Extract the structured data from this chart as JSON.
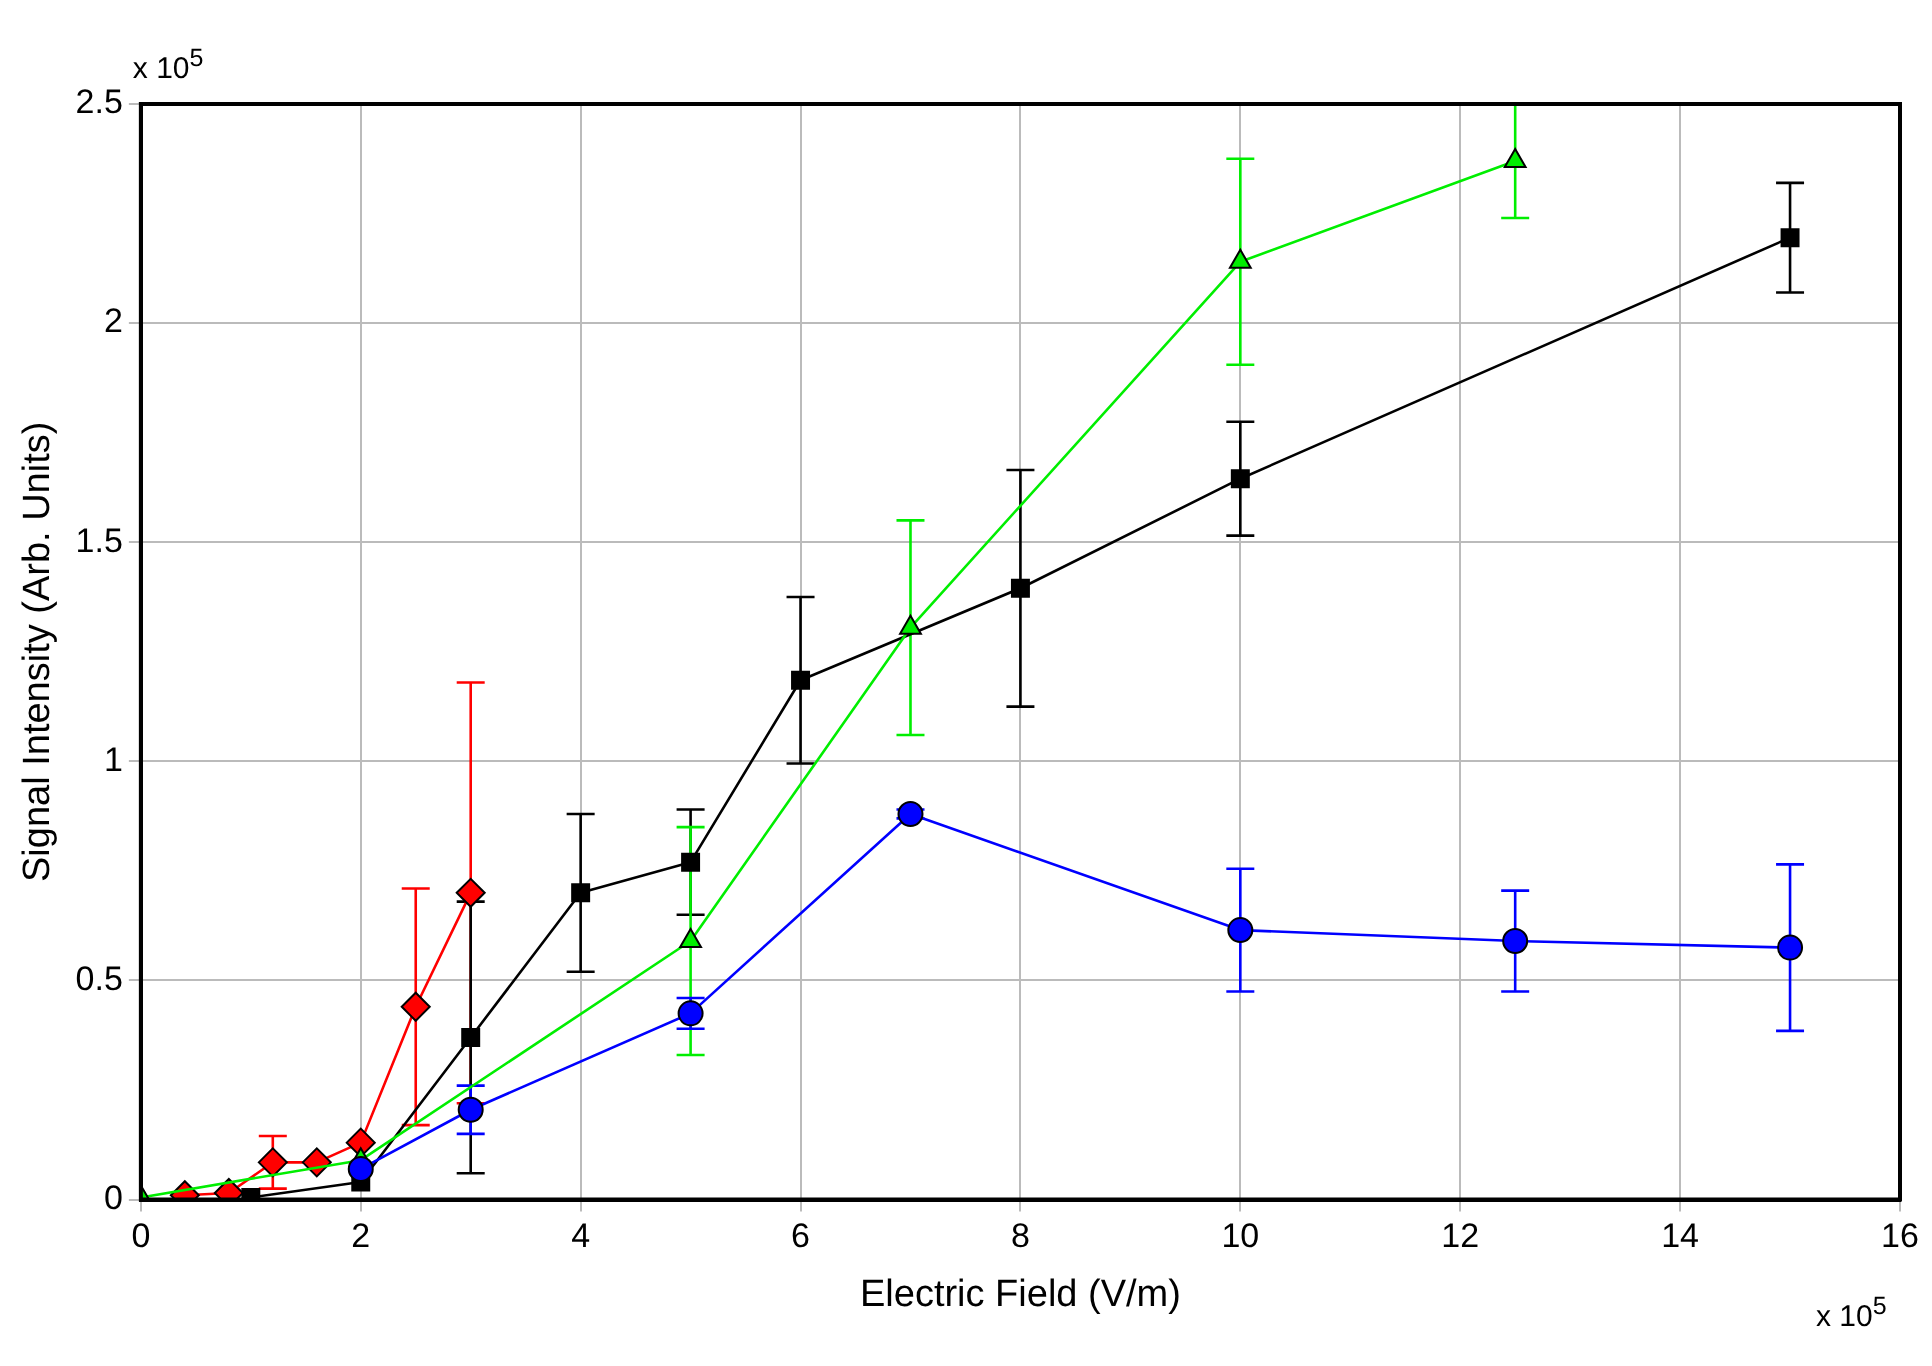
{
  "chart_data": {
    "type": "line",
    "xlabel": "Electric Field (V/m)",
    "ylabel": "Signal Intensity (Arb. Units)",
    "annotations": [
      "x 10$^{5}$",
      "x 10$^{5}$"
    ],
    "xlim": [
      0,
      16
    ],
    "xticks": [
      0,
      2,
      4,
      6,
      8,
      10,
      12,
      14,
      16
    ],
    "ylim": [
      0,
      2.5
    ],
    "yticks": [
      0,
      0.5,
      1,
      1.5,
      2,
      2.5
    ],
    "grid": true,
    "legend": false,
    "line_style": "solid",
    "series": [
      {
        "color": "#ff0000",
        "marker": "diamond",
        "x": [
          0.4,
          0.8,
          1.2,
          1.6,
          2,
          2.5,
          3
        ],
        "values": [
          0.01,
          0.015,
          0.085,
          0.085,
          0.13,
          0.44,
          0.7
        ],
        "errors": [
          null,
          null,
          0.06,
          null,
          null,
          0.27,
          0.48
        ]
      },
      {
        "color": "#000000",
        "marker": "square",
        "x": [
          1,
          2,
          3,
          4,
          5,
          6,
          8,
          10,
          15
        ],
        "values": [
          0.005,
          0.04,
          0.37,
          0.7,
          0.77,
          1.185,
          1.395,
          1.645,
          2.195
        ],
        "errors": [
          null,
          null,
          0.31,
          0.18,
          0.12,
          0.19,
          0.27,
          0.13,
          0.125
        ]
      },
      {
        "color": "#00ee00",
        "marker": "triangle",
        "x": [
          0,
          2,
          5,
          7,
          10,
          12.5
        ],
        "values": [
          0.005,
          0.09,
          0.59,
          1.305,
          2.14,
          2.37
        ],
        "errors": [
          null,
          null,
          0.26,
          0.245,
          0.235,
          0.13
        ]
      },
      {
        "color": "#0000ff",
        "marker": "circle",
        "x": [
          2,
          3,
          5,
          7,
          10,
          12.5,
          15
        ],
        "values": [
          0.07,
          0.205,
          0.425,
          0.88,
          0.615,
          0.59,
          0.575
        ],
        "errors": [
          null,
          0.055,
          0.035,
          0.01,
          0.14,
          0.115,
          0.19
        ]
      }
    ]
  }
}
